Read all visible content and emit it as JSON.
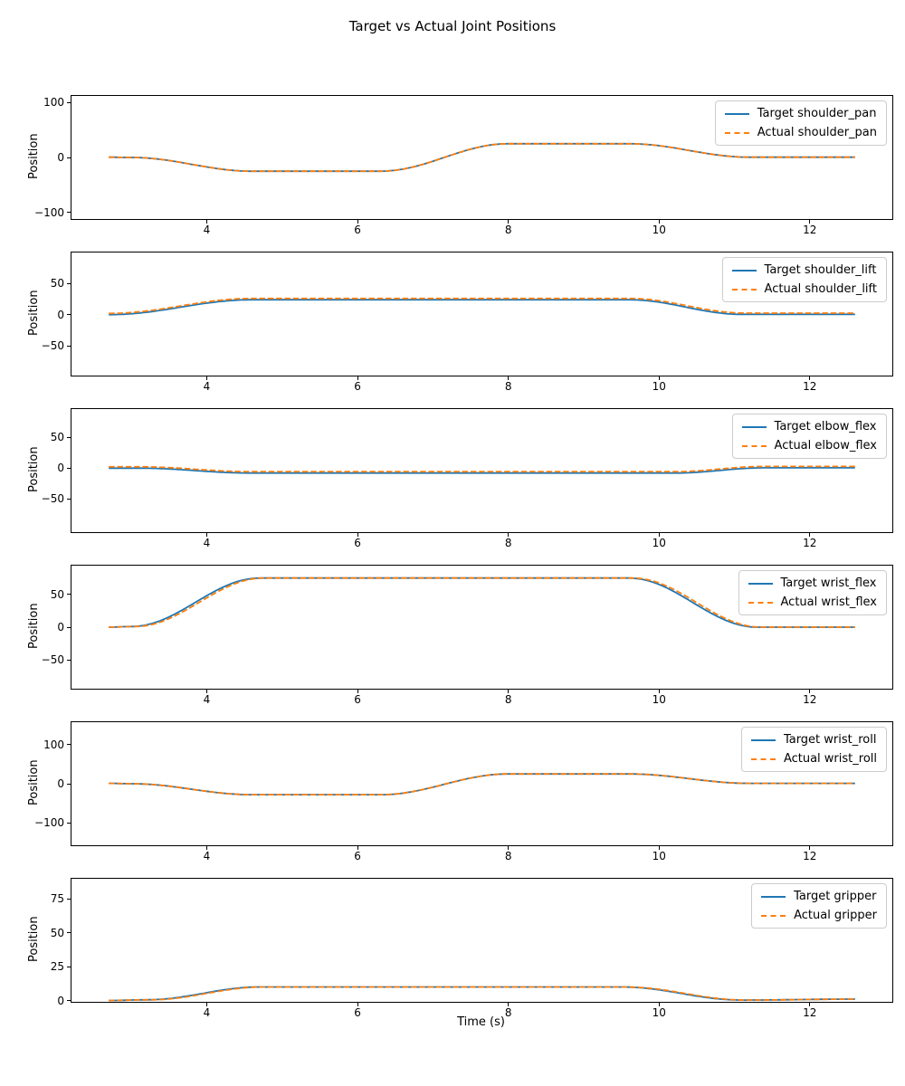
{
  "figure": {
    "title": "Target vs Actual Joint Positions",
    "xlabel": "Time (s)",
    "ylabel": "Position",
    "target_color": "#1f77b4",
    "actual_color": "#ff7f0e"
  },
  "chart_data": [
    {
      "type": "line",
      "joint": "shoulder_pan",
      "ylabel": "Position",
      "xlim": [
        2.205,
        13.095
      ],
      "ylim": [
        -112,
        112
      ],
      "xticks": [
        4,
        6,
        8,
        10,
        12
      ],
      "yticks": [
        100,
        0,
        -100
      ],
      "legend_position": "upper right",
      "interpolation": "smooth",
      "series": [
        {
          "name": "Target shoulder_pan",
          "color": "#1f77b4",
          "line": "solid",
          "keypoints": [
            [
              2.7,
              0.5
            ],
            [
              3.0,
              0
            ],
            [
              4.6,
              -25
            ],
            [
              6.3,
              -25
            ],
            [
              8.0,
              25
            ],
            [
              9.6,
              25
            ],
            [
              11.2,
              0.5
            ],
            [
              12.6,
              0.5
            ]
          ]
        },
        {
          "name": "Actual shoulder_pan",
          "color": "#ff7f0e",
          "line": "dashed",
          "keypoints": [
            [
              2.7,
              0.5
            ],
            [
              3.0,
              0
            ],
            [
              4.6,
              -25
            ],
            [
              6.3,
              -25
            ],
            [
              8.0,
              25
            ],
            [
              9.6,
              25
            ],
            [
              11.2,
              0.5
            ],
            [
              12.6,
              0.5
            ]
          ]
        }
      ]
    },
    {
      "type": "line",
      "joint": "shoulder_lift",
      "ylabel": "Position",
      "xlim": [
        2.205,
        13.095
      ],
      "ylim": [
        -98,
        100
      ],
      "xticks": [
        4,
        6,
        8,
        10,
        12
      ],
      "yticks": [
        50,
        0,
        -50
      ],
      "legend_position": "upper right",
      "interpolation": "smooth",
      "series": [
        {
          "name": "Target shoulder_lift",
          "color": "#1f77b4",
          "line": "solid",
          "keypoints": [
            [
              2.7,
              0
            ],
            [
              4.6,
              24
            ],
            [
              9.6,
              24
            ],
            [
              11.1,
              0.5
            ],
            [
              12.6,
              0.5
            ]
          ]
        },
        {
          "name": "Actual shoulder_lift",
          "color": "#ff7f0e",
          "line": "dashed",
          "keypoints": [
            [
              2.7,
              2
            ],
            [
              4.6,
              26
            ],
            [
              9.6,
              26
            ],
            [
              11.15,
              2.5
            ],
            [
              12.6,
              2.5
            ]
          ]
        }
      ]
    },
    {
      "type": "line",
      "joint": "elbow_flex",
      "ylabel": "Position",
      "xlim": [
        2.205,
        13.095
      ],
      "ylim": [
        -104,
        96
      ],
      "xticks": [
        4,
        6,
        8,
        10,
        12
      ],
      "yticks": [
        50,
        0,
        -50
      ],
      "legend_position": "upper right",
      "interpolation": "smooth",
      "series": [
        {
          "name": "Target elbow_flex",
          "color": "#1f77b4",
          "line": "solid",
          "keypoints": [
            [
              2.7,
              0
            ],
            [
              3.1,
              0
            ],
            [
              4.6,
              -8
            ],
            [
              10.2,
              -8
            ],
            [
              11.4,
              0.5
            ],
            [
              12.6,
              0.5
            ]
          ]
        },
        {
          "name": "Actual elbow_flex",
          "color": "#ff7f0e",
          "line": "dashed",
          "keypoints": [
            [
              2.7,
              2.2
            ],
            [
              3.1,
              2.2
            ],
            [
              4.6,
              -5.8
            ],
            [
              10.2,
              -5.8
            ],
            [
              11.4,
              2.7
            ],
            [
              12.6,
              2.7
            ]
          ]
        }
      ]
    },
    {
      "type": "line",
      "joint": "wrist_flex",
      "ylabel": "Position",
      "xlim": [
        2.205,
        13.095
      ],
      "ylim": [
        -94,
        94
      ],
      "xticks": [
        4,
        6,
        8,
        10,
        12
      ],
      "yticks": [
        50,
        0,
        -50
      ],
      "legend_position": "upper right",
      "interpolation": "smooth",
      "series": [
        {
          "name": "Target wrist_flex",
          "color": "#1f77b4",
          "line": "solid",
          "keypoints": [
            [
              2.7,
              0
            ],
            [
              3.0,
              1
            ],
            [
              4.7,
              75
            ],
            [
              9.6,
              75
            ],
            [
              11.3,
              0
            ],
            [
              12.6,
              0
            ]
          ]
        },
        {
          "name": "Actual wrist_flex",
          "color": "#ff7f0e",
          "line": "dashed",
          "keypoints": [
            [
              2.7,
              0
            ],
            [
              3.05,
              1
            ],
            [
              4.75,
              75
            ],
            [
              9.65,
              75
            ],
            [
              11.35,
              0
            ],
            [
              12.6,
              0
            ]
          ]
        }
      ]
    },
    {
      "type": "line",
      "joint": "wrist_roll",
      "ylabel": "Position",
      "xlim": [
        2.205,
        13.095
      ],
      "ylim": [
        -157,
        157
      ],
      "xticks": [
        4,
        6,
        8,
        10,
        12
      ],
      "yticks": [
        100,
        0,
        -100
      ],
      "legend_position": "upper right",
      "interpolation": "smooth",
      "series": [
        {
          "name": "Target wrist_roll",
          "color": "#1f77b4",
          "line": "solid",
          "keypoints": [
            [
              2.7,
              1
            ],
            [
              3.0,
              0
            ],
            [
              4.6,
              -28
            ],
            [
              6.3,
              -28
            ],
            [
              8.0,
              25
            ],
            [
              9.6,
              25
            ],
            [
              11.2,
              1
            ],
            [
              12.6,
              1
            ]
          ]
        },
        {
          "name": "Actual wrist_roll",
          "color": "#ff7f0e",
          "line": "dashed",
          "keypoints": [
            [
              2.7,
              1
            ],
            [
              3.0,
              0
            ],
            [
              4.6,
              -28
            ],
            [
              6.3,
              -28
            ],
            [
              8.0,
              25
            ],
            [
              9.6,
              25
            ],
            [
              11.2,
              1
            ],
            [
              12.6,
              1
            ]
          ]
        }
      ]
    },
    {
      "type": "line",
      "joint": "gripper",
      "ylabel": "Position",
      "xlim": [
        2.205,
        13.095
      ],
      "ylim": [
        -1,
        90
      ],
      "xticks": [
        4,
        6,
        8,
        10,
        12
      ],
      "yticks": [
        75,
        50,
        25,
        0
      ],
      "legend_position": "upper right",
      "interpolation": "smooth",
      "series": [
        {
          "name": "Target gripper",
          "color": "#1f77b4",
          "line": "solid",
          "keypoints": [
            [
              2.7,
              0
            ],
            [
              3.2,
              0.5
            ],
            [
              4.7,
              10
            ],
            [
              9.5,
              10
            ],
            [
              11.1,
              0.3
            ],
            [
              12.6,
              1
            ]
          ]
        },
        {
          "name": "Actual gripper",
          "color": "#ff7f0e",
          "line": "dashed",
          "keypoints": [
            [
              2.7,
              0
            ],
            [
              3.25,
              0.5
            ],
            [
              4.75,
              10
            ],
            [
              9.55,
              10
            ],
            [
              11.15,
              0.3
            ],
            [
              12.6,
              1
            ]
          ]
        }
      ]
    }
  ]
}
